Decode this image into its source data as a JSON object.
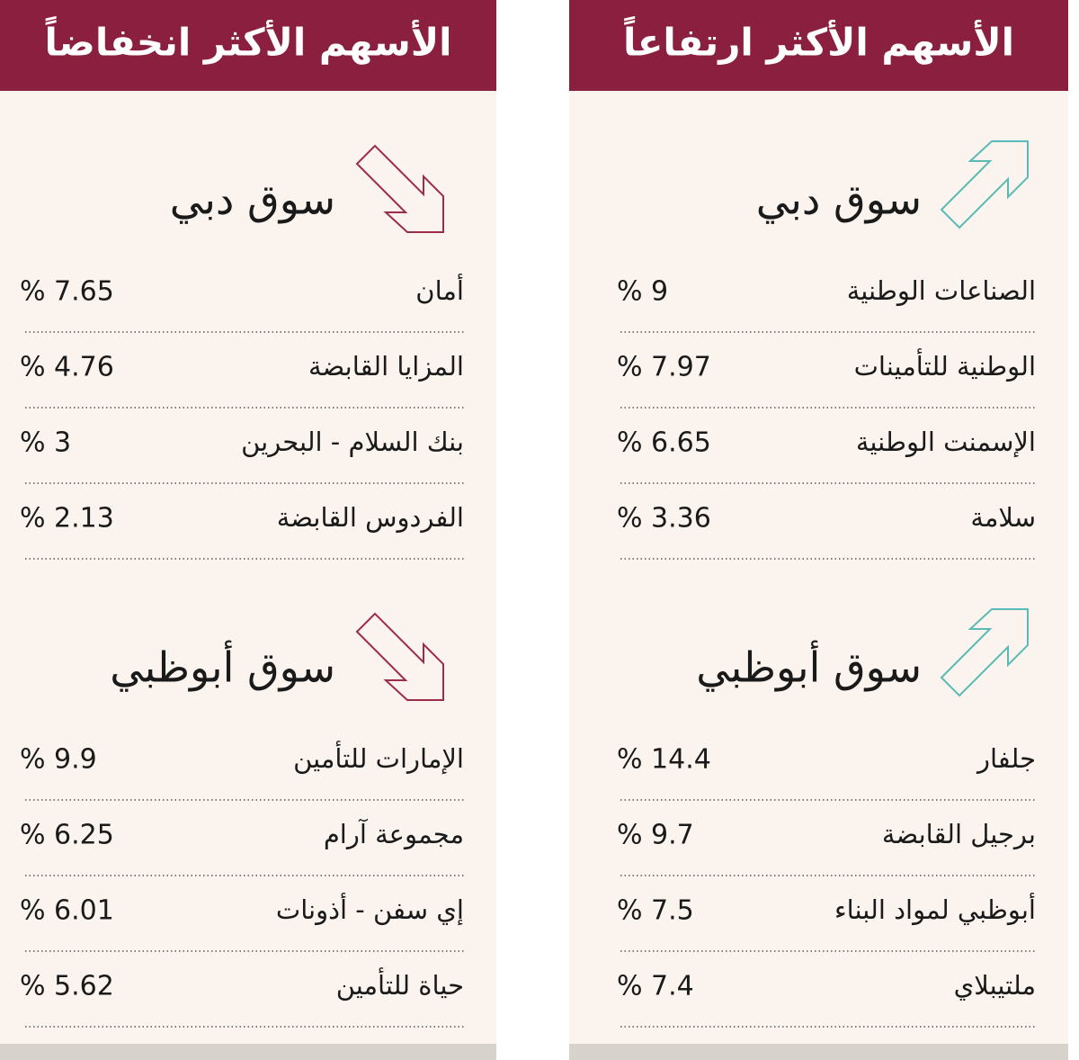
{
  "panels": [
    {
      "title": "الأسهم الأكثر ارتفاعاً",
      "sections": [
        {
          "market": "سوق دبي",
          "rows": [
            {
              "name": "الصناعات الوطنية",
              "change": "% 9"
            },
            {
              "name": "الوطنية للتأمينات",
              "change": "% 7.97"
            },
            {
              "name": "الإسمنت الوطنية",
              "change": "% 6.65"
            },
            {
              "name": "سلامة",
              "change": "% 3.36"
            }
          ]
        },
        {
          "market": "سوق أبوظبي",
          "rows": [
            {
              "name": "جلفار",
              "change": "% 14.4"
            },
            {
              "name": "برجيل القابضة",
              "change": "% 9.7"
            },
            {
              "name": "أبوظبي لمواد البناء",
              "change": "% 7.5"
            },
            {
              "name": "ملتيبلاي",
              "change": "% 7.4"
            }
          ]
        }
      ]
    },
    {
      "title": "الأسهم الأكثر انخفاضاً",
      "sections": [
        {
          "market": "سوق دبي",
          "rows": [
            {
              "name": "أمان",
              "change": "% 7.65"
            },
            {
              "name": "المزايا القابضة",
              "change": "% 4.76"
            },
            {
              "name": "بنك السلام - البحرين",
              "change": "% 3"
            },
            {
              "name": "الفردوس القابضة",
              "change": "% 2.13"
            }
          ]
        },
        {
          "market": "سوق أبوظبي",
          "rows": [
            {
              "name": "الإمارات للتأمين",
              "change": "% 9.9"
            },
            {
              "name": "مجموعة آرام",
              "change": "% 6.25"
            },
            {
              "name": "إي سفن - أذونات",
              "change": "% 6.01"
            },
            {
              "name": "حياة للتأمين",
              "change": "% 5.62"
            }
          ]
        }
      ]
    }
  ]
}
